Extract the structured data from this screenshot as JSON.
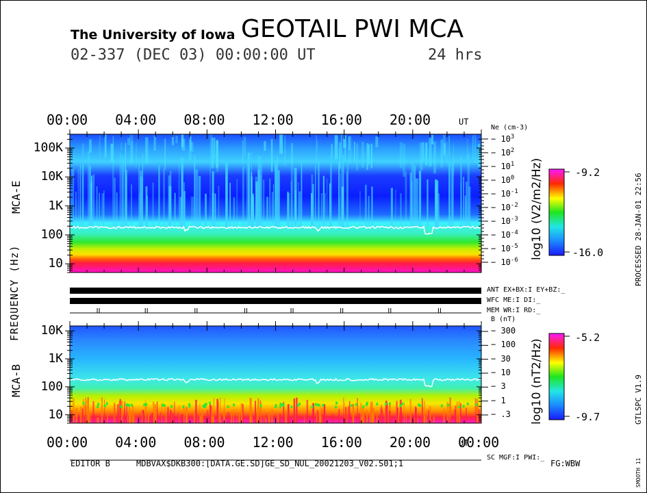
{
  "header": {
    "institution": "The University of Iowa",
    "mission": "GEOTAIL PWI MCA",
    "date_line": "02-337 (DEC 03) 00:00:00 UT",
    "duration": "24 hrs"
  },
  "side_labels": {
    "processed": "PROCESSED 28-JAN-01 22:56",
    "version": "GTLSPC V1.9",
    "smooth": "SMOOTH 11",
    "frequency_axis": "FREQUENCY (Hz)"
  },
  "footer": {
    "editor": "EDITOR B",
    "file_path": "MDBVAX$DKB300:[DATA.GE.SD]GE_SD_NUL_20021203_V02.S01;1",
    "fg": "FG:WBW"
  },
  "status_labels": {
    "ant": "ANT EX+BX:I EY+BZ:_",
    "wfc": "WFC ME:I     DI:_",
    "mem": "MEM WR:I     RD:_",
    "sc": "SC MGF:I   PWI:_"
  },
  "chart_data": [
    {
      "type": "heatmap",
      "panel": "MCA-E",
      "panel_label": "MCA-E",
      "x_tick_labels": [
        "00:00",
        "04:00",
        "08:00",
        "12:00",
        "16:00",
        "20:00"
      ],
      "x_unit": "UT",
      "x_range_hours": [
        0,
        24
      ],
      "y_tick_labels": [
        "10",
        "100",
        "1K",
        "10K",
        "100K"
      ],
      "y_scale": "log",
      "y_range_hz": [
        5,
        300000
      ],
      "right_axis_label": "Ne (cm-3)",
      "right_ticks": [
        {
          "base": "10",
          "exp": "3",
          "log_value": 3
        },
        {
          "base": "10",
          "exp": "2",
          "log_value": 2
        },
        {
          "base": "10",
          "exp": "1",
          "log_value": 1
        },
        {
          "base": "10",
          "exp": "0",
          "log_value": 0
        },
        {
          "base": "10",
          "exp": "-1",
          "log_value": -1
        },
        {
          "base": "10",
          "exp": "-2",
          "log_value": -2
        },
        {
          "base": "10",
          "exp": "-3",
          "log_value": -3
        },
        {
          "base": "10",
          "exp": "-4",
          "log_value": -4
        },
        {
          "base": "10",
          "exp": "-5",
          "log_value": -5
        },
        {
          "base": "10",
          "exp": "-6",
          "log_value": -6
        }
      ],
      "colorbar": {
        "label": "log10 (V2/m2/Hz)",
        "max": -9.2,
        "min": -16.0,
        "max_label": "-9.2",
        "min_label": "-16.0"
      },
      "plasma_frequency_line_hz": 180,
      "spectral_bands_hz": [
        {
          "f_low": 5,
          "f_high": 12,
          "level": "max"
        },
        {
          "f_low": 12,
          "f_high": 18,
          "level": "high"
        },
        {
          "f_low": 18,
          "f_high": 40,
          "level": "mid"
        },
        {
          "f_low": 40,
          "f_high": 170,
          "level": "low-mid"
        },
        {
          "f_low": 170,
          "f_high": 10000,
          "level": "low"
        },
        {
          "f_low": 10000,
          "f_high": 300000,
          "level": "low-mid"
        }
      ]
    },
    {
      "type": "heatmap",
      "panel": "MCA-B",
      "panel_label": "MCA-B",
      "x_tick_labels": [
        "00:00",
        "04:00",
        "08:00",
        "12:00",
        "16:00",
        "20:00",
        "00:00"
      ],
      "x_unit": "UT",
      "x_range_hours": [
        0,
        24
      ],
      "y_tick_labels": [
        "10",
        "100",
        "1K",
        "10K"
      ],
      "y_scale": "log",
      "y_range_hz": [
        5,
        15000
      ],
      "right_axis_label": "B (nT)",
      "right_ticks": [
        "300",
        "100",
        "30",
        "10",
        "3",
        "1",
        ".3"
      ],
      "colorbar": {
        "label": "log10 (nT2/Hz)",
        "max": -5.2,
        "min": -9.7,
        "max_label": "-5.2",
        "min_label": "-9.7"
      },
      "plasma_frequency_line_hz": 180,
      "spectral_bands_hz": [
        {
          "f_low": 5,
          "f_high": 10,
          "level": "max"
        },
        {
          "f_low": 10,
          "f_high": 40,
          "level": "high"
        },
        {
          "f_low": 40,
          "f_high": 200,
          "level": "mid"
        },
        {
          "f_low": 200,
          "f_high": 15000,
          "level": "low"
        }
      ]
    }
  ]
}
